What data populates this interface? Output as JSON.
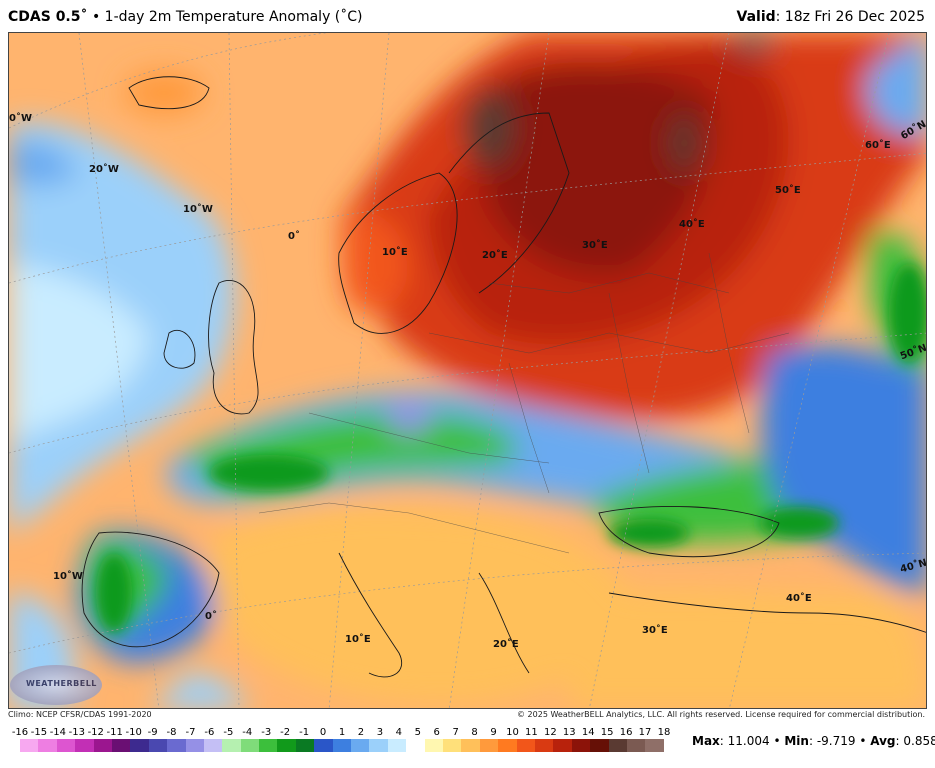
{
  "header": {
    "model": "CDAS 0.5˚",
    "product": " • 1-day 2m Temperature Anomaly (˚C)",
    "valid_label": "Valid",
    "valid_time": ": 18z Fri 26 Dec 2025"
  },
  "map": {
    "grid_labels": [
      "0˚W",
      "20˚W",
      "10˚W",
      "0˚",
      "10˚E",
      "20˚E",
      "30˚E",
      "40˚E",
      "50˚E",
      "60˚E",
      "60˚N",
      "50˚N",
      "40˚N",
      "10˚W",
      "0˚",
      "10˚E",
      "20˚E",
      "30˚E",
      "40˚E"
    ],
    "logo_text": "WEATHERBELL"
  },
  "footer": {
    "climo": "Climo: NCEP CFSR/CDAS 1991-2020",
    "copyright": "© 2025 WeatherBELL Analytics, LLC. All rights reserved. License required for commercial distribution."
  },
  "colorbar": {
    "labels": [
      "-16",
      "-15",
      "-14",
      "-13",
      "-12",
      "-11",
      "-10",
      "-9",
      "-8",
      "-7",
      "-6",
      "-5",
      "-4",
      "-3",
      "-2",
      "-1",
      "0",
      "1",
      "2",
      "3",
      "4",
      "5",
      "6",
      "7",
      "8",
      "9",
      "10",
      "11",
      "12",
      "13",
      "14",
      "15",
      "16",
      "17",
      "18"
    ],
    "colors": [
      "#f7a8f0",
      "#ee7ee2",
      "#dd55d0",
      "#c22fb5",
      "#9b168f",
      "#6a0f73",
      "#3d2a8f",
      "#4a48b0",
      "#6a6ad0",
      "#9590e6",
      "#c4bff5",
      "#b5f0b0",
      "#7fdc7a",
      "#3cbf3c",
      "#119a1b",
      "#0a7a23",
      "#2a56c8",
      "#3d7fe0",
      "#6aaaf0",
      "#9bd0fa",
      "#c9ecff",
      "#ffffff",
      "#fff7b0",
      "#ffe07a",
      "#ffc05a",
      "#ff9a3c",
      "#ff7a20",
      "#f2561a",
      "#d93a12",
      "#b8220c",
      "#8c1309",
      "#661006",
      "#5a3a32",
      "#7b5a52",
      "#8f6f68"
    ]
  },
  "stats": {
    "max_label": "Max",
    "max_value": ": 11.004",
    "min_label": "Min",
    "min_value": ": -9.719",
    "avg_label": "Avg",
    "avg_value": ": 0.858",
    "sep": " • "
  }
}
